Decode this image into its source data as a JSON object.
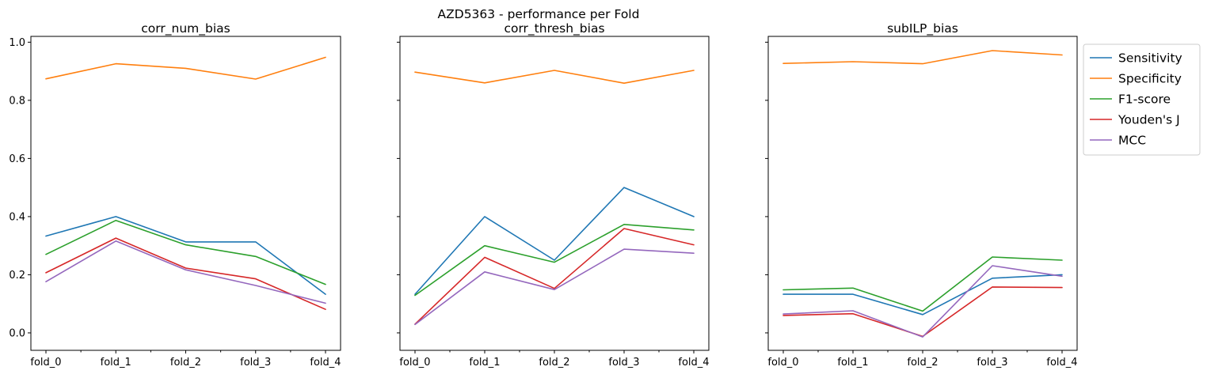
{
  "figure": {
    "suptitle": "AZD5363 - performance per Fold"
  },
  "chart_data": [
    {
      "type": "line",
      "title": "corr_num_bias",
      "xlabel": "",
      "ylabel": "",
      "x": [
        "fold_0",
        "fold_1",
        "fold_2",
        "fold_3",
        "fold_4"
      ],
      "ylim": [
        -0.06,
        1.02
      ],
      "yticks": [
        "0.0",
        "0.2",
        "0.4",
        "0.6",
        "0.8",
        "1.0"
      ],
      "grid": false,
      "series": [
        {
          "name": "Sensitivity",
          "color": "#1f77b4",
          "values": [
            0.333,
            0.4,
            0.313,
            0.313,
            0.133
          ]
        },
        {
          "name": "Specificity",
          "color": "#ff7f0e",
          "values": [
            0.874,
            0.926,
            0.91,
            0.873,
            0.948
          ]
        },
        {
          "name": "F1-score",
          "color": "#2ca02c",
          "values": [
            0.27,
            0.387,
            0.303,
            0.263,
            0.167
          ]
        },
        {
          "name": "Youden's J",
          "color": "#d62728",
          "values": [
            0.207,
            0.326,
            0.223,
            0.186,
            0.081
          ]
        },
        {
          "name": "MCC",
          "color": "#9467bd",
          "values": [
            0.176,
            0.316,
            0.217,
            0.163,
            0.102
          ]
        }
      ]
    },
    {
      "type": "line",
      "title": "corr_thresh_bias",
      "xlabel": "",
      "ylabel": "",
      "x": [
        "fold_0",
        "fold_1",
        "fold_2",
        "fold_3",
        "fold_4"
      ],
      "ylim": [
        -0.06,
        1.02
      ],
      "yticks": [
        "0.0",
        "0.2",
        "0.4",
        "0.6",
        "0.8",
        "1.0"
      ],
      "grid": false,
      "series": [
        {
          "name": "Sensitivity",
          "color": "#1f77b4",
          "values": [
            0.133,
            0.4,
            0.25,
            0.5,
            0.4
          ]
        },
        {
          "name": "Specificity",
          "color": "#ff7f0e",
          "values": [
            0.897,
            0.86,
            0.903,
            0.859,
            0.903
          ]
        },
        {
          "name": "F1-score",
          "color": "#2ca02c",
          "values": [
            0.129,
            0.3,
            0.243,
            0.373,
            0.354
          ]
        },
        {
          "name": "Youden's J",
          "color": "#d62728",
          "values": [
            0.03,
            0.26,
            0.153,
            0.359,
            0.303
          ]
        },
        {
          "name": "MCC",
          "color": "#9467bd",
          "values": [
            0.029,
            0.21,
            0.149,
            0.288,
            0.274
          ]
        }
      ]
    },
    {
      "type": "line",
      "title": "subILP_bias",
      "xlabel": "",
      "ylabel": "",
      "x": [
        "fold_0",
        "fold_1",
        "fold_2",
        "fold_3",
        "fold_4"
      ],
      "ylim": [
        -0.06,
        1.02
      ],
      "yticks": [
        "0.0",
        "0.2",
        "0.4",
        "0.6",
        "0.8",
        "1.0"
      ],
      "grid": false,
      "legend_position": "outside upper right",
      "series": [
        {
          "name": "Sensitivity",
          "color": "#1f77b4",
          "values": [
            0.133,
            0.133,
            0.063,
            0.188,
            0.2
          ]
        },
        {
          "name": "Specificity",
          "color": "#ff7f0e",
          "values": [
            0.927,
            0.933,
            0.926,
            0.971,
            0.956
          ]
        },
        {
          "name": "F1-score",
          "color": "#2ca02c",
          "values": [
            0.148,
            0.154,
            0.075,
            0.261,
            0.25
          ]
        },
        {
          "name": "Youden's J",
          "color": "#d62728",
          "values": [
            0.06,
            0.066,
            -0.012,
            0.158,
            0.156
          ]
        },
        {
          "name": "MCC",
          "color": "#9467bd",
          "values": [
            0.065,
            0.076,
            -0.014,
            0.231,
            0.195
          ]
        }
      ]
    }
  ]
}
